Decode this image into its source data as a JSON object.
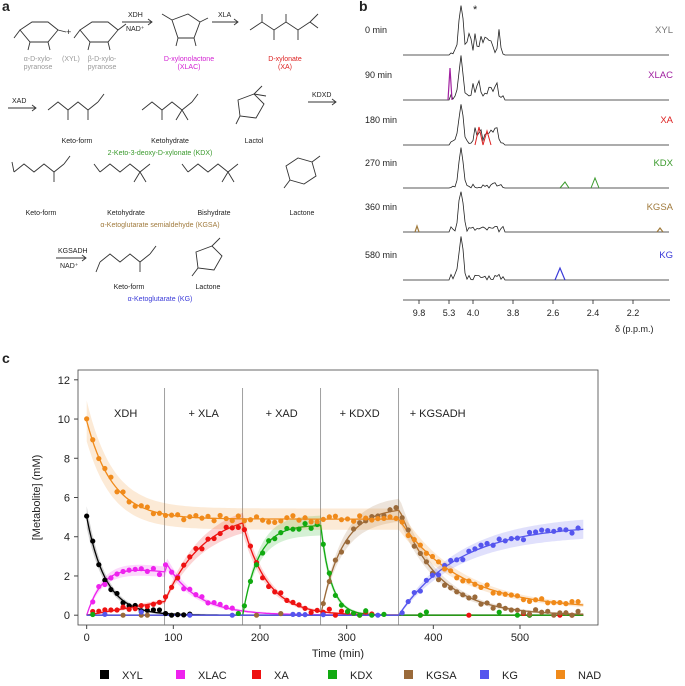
{
  "panels": {
    "a": "a",
    "b": "b",
    "c": "c"
  },
  "panel_a": {
    "row1": {
      "alpha": "α-D-xylo-\npyranose",
      "beta": "β-D-xylo-\npyranose",
      "xyl_tag": "(XYL)",
      "plus": "+",
      "enz1": "XDH",
      "enz1_cof": "NAD⁺",
      "xlac": "D-xylonolactone\n(XLAC)",
      "enz2": "XLA",
      "xa": "D-xylonate\n(XA)"
    },
    "row2": {
      "enz": "XAD",
      "keto": "Keto-form",
      "ketohydrate": "Ketohydrate",
      "lactol": "Lactol",
      "caption": "2-Keto-3-deoxy-D-xylonate (KDX)",
      "enz_next": "KDXD"
    },
    "row3": {
      "keto": "Keto-form",
      "ketohydrate": "Ketohydrate",
      "bishydrate": "Bishydrate",
      "lactone": "Lactone",
      "caption": "α-Ketoglutarate semialdehyde (KGSA)"
    },
    "row4": {
      "enz": "KGSADH",
      "cof": "NAD⁺",
      "keto": "Keto-form",
      "lactone": "Lactone",
      "caption": "α-Ketoglutarate (KG)"
    }
  },
  "panel_b": {
    "star": "*",
    "traces": [
      {
        "time": "0 min",
        "compound": "XYL",
        "color": "#777777"
      },
      {
        "time": "90 min",
        "compound": "XLAC",
        "color": "#a020a0"
      },
      {
        "time": "180 min",
        "compound": "XA",
        "color": "#dd2222"
      },
      {
        "time": "270 min",
        "compound": "KDX",
        "color": "#3a9a2c"
      },
      {
        "time": "360 min",
        "compound": "KGSA",
        "color": "#a07a3c"
      },
      {
        "time": "580 min",
        "compound": "KG",
        "color": "#3a3ad8"
      }
    ],
    "axis_ticks": [
      "9.8",
      "5.3",
      "4.0",
      "3.8",
      "2.6",
      "2.4",
      "2.2"
    ],
    "axis_label": "δ (p.p.m.)"
  },
  "chart_data": {
    "type": "scatter",
    "xlabel": "Time (min)",
    "ylabel": "[Metabolite] (mM)",
    "xlim": [
      -10,
      590
    ],
    "ylim": [
      -0.5,
      12.5
    ],
    "xticks": [
      0,
      100,
      200,
      300,
      400,
      500
    ],
    "yticks": [
      0,
      2,
      4,
      6,
      8,
      10,
      12
    ],
    "phase_boundaries": [
      90,
      180,
      270,
      360
    ],
    "phases": [
      "XDH",
      "+ XLA",
      "+ XAD",
      "+ KDXD",
      "+ KGSADH"
    ],
    "legend_position": "bottom",
    "series": [
      {
        "name": "XYL",
        "color": "#000000"
      },
      {
        "name": "XLAC",
        "color": "#ee22ee"
      },
      {
        "name": "XA",
        "color": "#ee1111"
      },
      {
        "name": "KDX",
        "color": "#11aa11"
      },
      {
        "name": "KGSA",
        "color": "#9a6a3a"
      },
      {
        "name": "KG",
        "color": "#5555ee"
      },
      {
        "name": "NAD",
        "color": "#f08a1a"
      }
    ]
  }
}
